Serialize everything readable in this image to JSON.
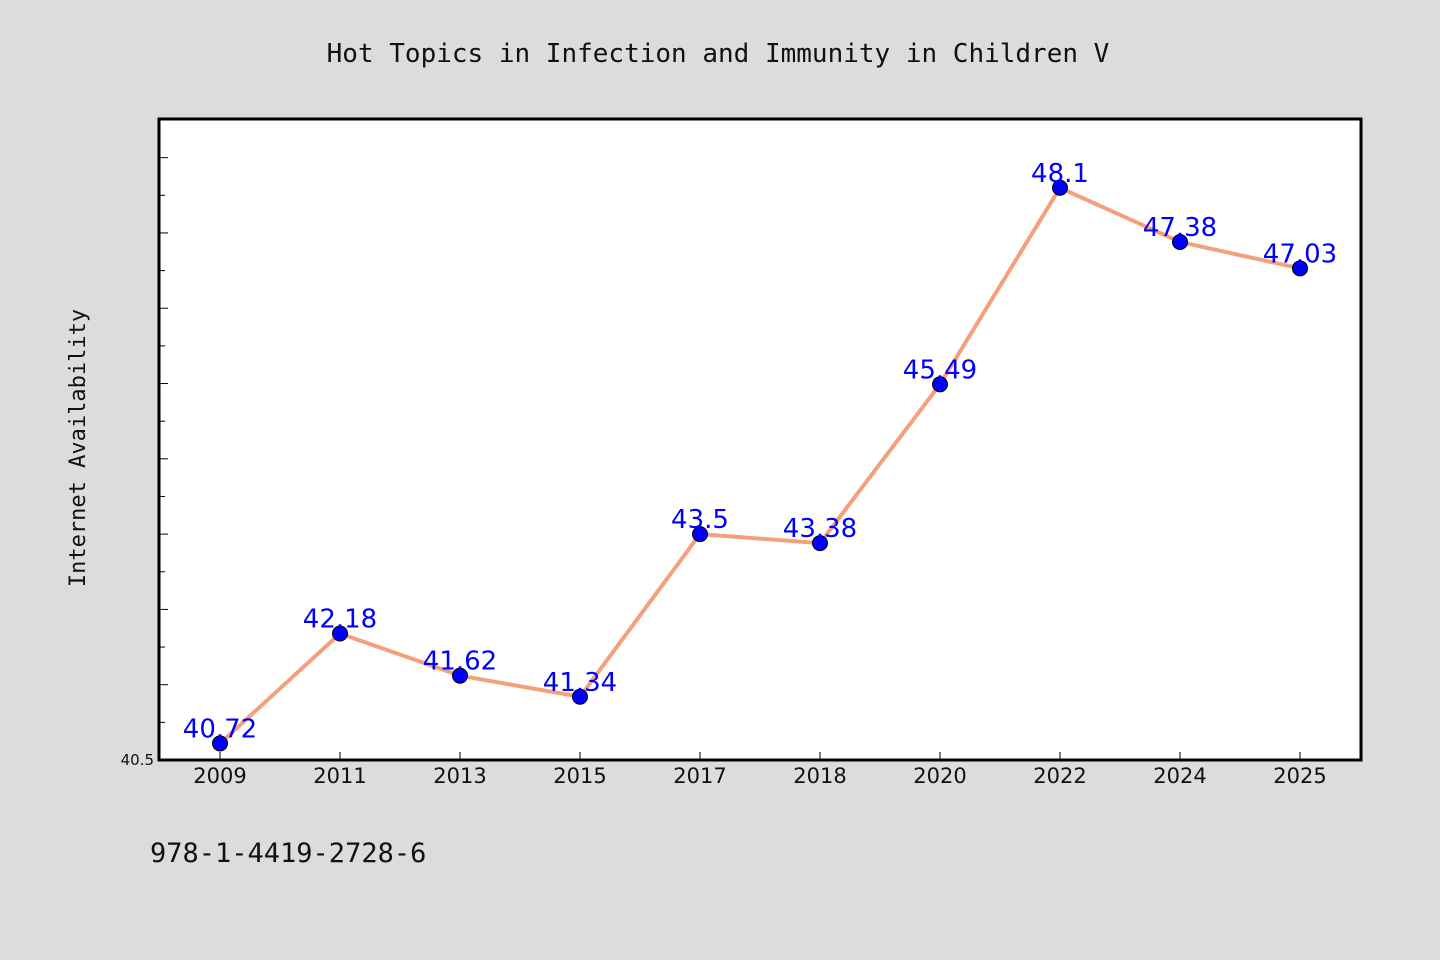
{
  "chart_data": {
    "type": "line",
    "title": "Hot Topics in Infection and Immunity in Children V",
    "xlabel": "",
    "ylabel": "Internet Availability",
    "categories": [
      "2009",
      "2011",
      "2013",
      "2015",
      "2017",
      "2018",
      "2020",
      "2022",
      "2024",
      "2025"
    ],
    "series": [
      {
        "values": [
          40.72,
          42.18,
          41.62,
          41.34,
          43.5,
          43.38,
          45.49,
          48.1,
          47.38,
          47.03
        ]
      }
    ],
    "data_labels": [
      "40.72",
      "42.18",
      "41.62",
      "41.34",
      "43.5",
      "43.38",
      "45.49",
      "48.1",
      "47.38",
      "47.03"
    ],
    "ylim": [
      40.5,
      49.0
    ],
    "ytick_labels": [
      "40.5"
    ],
    "grid": false,
    "line_color": "#f4a07c",
    "marker_color": "#0000ff",
    "label_color": "#0000ff",
    "background_color": "#dcdcdc",
    "plot_background_color": "#ffffff"
  },
  "footer": {
    "text": "978-1-4419-2728-6"
  }
}
